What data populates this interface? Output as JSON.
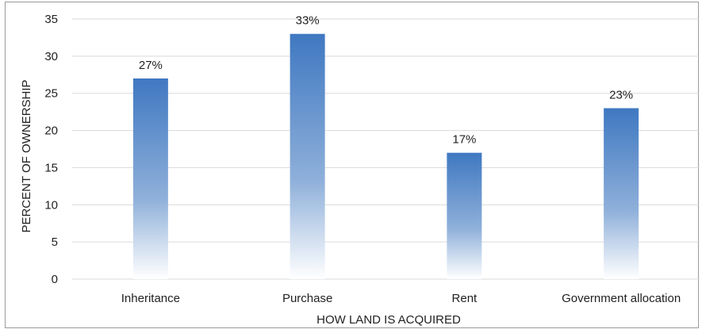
{
  "chart_data": {
    "type": "bar",
    "categories": [
      "Inheritance",
      "Purchase",
      "Rent",
      "Government allocation"
    ],
    "values": [
      27,
      33,
      17,
      23
    ],
    "data_labels": [
      "27%",
      "33%",
      "17%",
      "23%"
    ],
    "title": "",
    "xlabel": "HOW LAND IS ACQUIRED",
    "ylabel": "PERCENT OF OWNERSHIP",
    "ylim": [
      0,
      35
    ],
    "yticks": [
      0,
      5,
      10,
      15,
      20,
      25,
      30,
      35
    ],
    "grid": true,
    "legend": "none",
    "bar_color": "#3f78c1",
    "bar_fade_color": "#ffffff"
  }
}
